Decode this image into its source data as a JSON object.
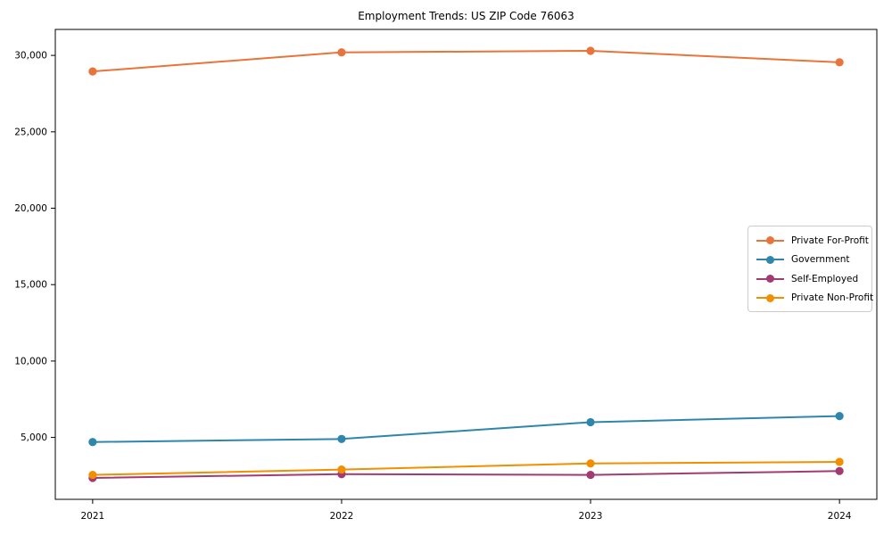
{
  "title": "Employment Trends: US ZIP Code 76063",
  "chart_data": {
    "type": "line",
    "title": "Employment Trends: US ZIP Code 76063",
    "x": [
      2021,
      2022,
      2023,
      2024
    ],
    "categories": [
      "2021",
      "2022",
      "2023",
      "2024"
    ],
    "series": [
      {
        "name": "Private For-Profit",
        "color": "#E8743B",
        "values": [
          28950,
          30200,
          30300,
          29550
        ]
      },
      {
        "name": "Government",
        "color": "#2E86AB",
        "values": [
          4700,
          4900,
          6000,
          6400
        ]
      },
      {
        "name": "Self-Employed",
        "color": "#A23B72",
        "values": [
          2350,
          2600,
          2550,
          2800
        ]
      },
      {
        "name": "Private Non-Profit",
        "color": "#F18F01",
        "values": [
          2550,
          2900,
          3300,
          3400
        ]
      }
    ],
    "xlabel": "",
    "ylabel": "",
    "xlim": [
      2020.85,
      2024.15
    ],
    "ylim": [
      950,
      31700
    ],
    "yticks": [
      5000,
      10000,
      15000,
      20000,
      25000,
      30000
    ],
    "ytick_labels": [
      "5,000",
      "10,000",
      "15,000",
      "20,000",
      "25,000",
      "30,000"
    ],
    "grid": false,
    "legend_position": "center-right",
    "marker": "circle",
    "axis_color": "#000000",
    "background_color": "#ffffff"
  }
}
